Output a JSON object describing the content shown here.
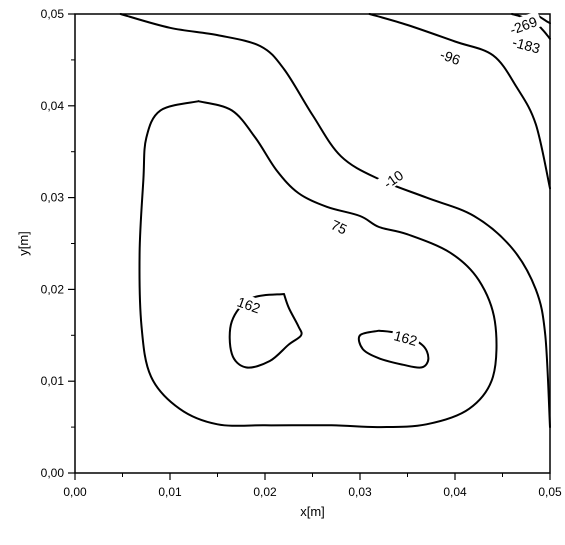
{
  "chart_data": {
    "type": "contour",
    "xlabel": "x[m]",
    "ylabel": "y[m]",
    "xlim": [
      0.0,
      0.05
    ],
    "ylim": [
      0.0,
      0.05
    ],
    "x_ticks": [
      {
        "value": 0.0,
        "label": "0,00"
      },
      {
        "value": 0.01,
        "label": "0,01"
      },
      {
        "value": 0.02,
        "label": "0,02"
      },
      {
        "value": 0.03,
        "label": "0,03"
      },
      {
        "value": 0.04,
        "label": "0,04"
      },
      {
        "value": 0.05,
        "label": "0,05"
      }
    ],
    "y_ticks": [
      {
        "value": 0.0,
        "label": "0,00"
      },
      {
        "value": 0.01,
        "label": "0,01"
      },
      {
        "value": 0.02,
        "label": "0,02"
      },
      {
        "value": 0.03,
        "label": "0,03"
      },
      {
        "value": 0.04,
        "label": "0,04"
      },
      {
        "value": 0.05,
        "label": "0,05"
      }
    ],
    "grid": false,
    "contours": [
      {
        "level": -269,
        "label": "-269",
        "points": [
          [
            0.0485,
            0.05
          ],
          [
            0.0495,
            0.0493
          ],
          [
            0.05,
            0.049
          ]
        ]
      },
      {
        "level": -183,
        "label": "-183",
        "points": [
          [
            0.046,
            0.05
          ],
          [
            0.047,
            0.0497
          ],
          [
            0.0485,
            0.049
          ],
          [
            0.0492,
            0.0483
          ],
          [
            0.0497,
            0.0477
          ],
          [
            0.05,
            0.0473
          ]
        ]
      },
      {
        "level": -96,
        "label": "-96",
        "points": [
          [
            0.031,
            0.05
          ],
          [
            0.035,
            0.0488
          ],
          [
            0.04,
            0.047
          ],
          [
            0.044,
            0.0455
          ],
          [
            0.0465,
            0.042
          ],
          [
            0.0485,
            0.038
          ],
          [
            0.05,
            0.031
          ]
        ]
      },
      {
        "level": -10,
        "label": "-10",
        "points": [
          [
            0.0048,
            0.05
          ],
          [
            0.01,
            0.0485
          ],
          [
            0.015,
            0.0477
          ],
          [
            0.0195,
            0.0465
          ],
          [
            0.022,
            0.044
          ],
          [
            0.025,
            0.039
          ],
          [
            0.028,
            0.0345
          ],
          [
            0.032,
            0.032
          ],
          [
            0.037,
            0.03
          ],
          [
            0.042,
            0.028
          ],
          [
            0.046,
            0.0245
          ],
          [
            0.0485,
            0.02
          ],
          [
            0.0495,
            0.015
          ],
          [
            0.05,
            0.005
          ]
        ]
      },
      {
        "level": 75,
        "label": "75",
        "points": [
          [
            0.013,
            0.0405
          ],
          [
            0.009,
            0.0395
          ],
          [
            0.0075,
            0.0365
          ],
          [
            0.0072,
            0.032
          ],
          [
            0.0068,
            0.024
          ],
          [
            0.007,
            0.016
          ],
          [
            0.008,
            0.0105
          ],
          [
            0.011,
            0.007
          ],
          [
            0.015,
            0.0053
          ],
          [
            0.02,
            0.0052
          ],
          [
            0.027,
            0.0052
          ],
          [
            0.032,
            0.005
          ],
          [
            0.037,
            0.0053
          ],
          [
            0.0415,
            0.007
          ],
          [
            0.044,
            0.0105
          ],
          [
            0.0442,
            0.0165
          ],
          [
            0.0425,
            0.021
          ],
          [
            0.0395,
            0.024
          ],
          [
            0.035,
            0.026
          ],
          [
            0.032,
            0.0268
          ],
          [
            0.03,
            0.028
          ],
          [
            0.0265,
            0.029
          ],
          [
            0.0235,
            0.0305
          ],
          [
            0.0212,
            0.033
          ],
          [
            0.019,
            0.0365
          ],
          [
            0.0165,
            0.0395
          ],
          [
            0.013,
            0.0405
          ]
        ]
      },
      {
        "level": 162,
        "label": "162",
        "points": [
          [
            0.022,
            0.0195
          ],
          [
            0.0185,
            0.019
          ],
          [
            0.0165,
            0.0165
          ],
          [
            0.0165,
            0.013
          ],
          [
            0.018,
            0.0115
          ],
          [
            0.0205,
            0.0122
          ],
          [
            0.0225,
            0.014
          ],
          [
            0.0238,
            0.015
          ],
          [
            0.0235,
            0.016
          ],
          [
            0.0225,
            0.018
          ],
          [
            0.022,
            0.0195
          ]
        ]
      },
      {
        "level": 162,
        "label": "162",
        "points": [
          [
            0.032,
            0.0155
          ],
          [
            0.03,
            0.015
          ],
          [
            0.0303,
            0.0135
          ],
          [
            0.032,
            0.0125
          ],
          [
            0.0345,
            0.0118
          ],
          [
            0.0365,
            0.0115
          ],
          [
            0.0372,
            0.0125
          ],
          [
            0.0365,
            0.014
          ],
          [
            0.034,
            0.0152
          ],
          [
            0.032,
            0.0155
          ]
        ]
      }
    ],
    "contour_labels": [
      {
        "text": "-269",
        "x": 0.0472,
        "y": 0.04875,
        "angle": -20
      },
      {
        "text": "-183",
        "x": 0.0475,
        "y": 0.0466,
        "angle": 15
      },
      {
        "text": "-96",
        "x": 0.0395,
        "y": 0.0453,
        "angle": 20
      },
      {
        "text": "-10",
        "x": 0.0335,
        "y": 0.032,
        "angle": -35
      },
      {
        "text": "75",
        "x": 0.0278,
        "y": 0.0268,
        "angle": 25
      },
      {
        "text": "162",
        "x": 0.0183,
        "y": 0.0183,
        "angle": 20
      },
      {
        "text": "162",
        "x": 0.0348,
        "y": 0.0147,
        "angle": 15
      }
    ]
  }
}
